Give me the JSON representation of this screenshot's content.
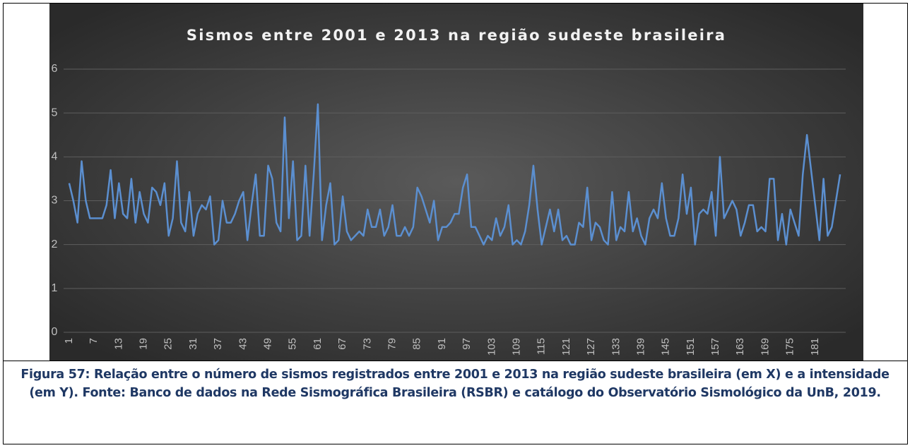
{
  "chart_data": {
    "type": "line",
    "title": "Sismos entre 2001 e 2013 na região sudeste brasileira",
    "categories": [
      "1",
      null,
      null,
      null,
      null,
      null,
      "7",
      null,
      null,
      null,
      null,
      null,
      "13",
      null,
      null,
      null,
      null,
      null,
      "19",
      null,
      null,
      null,
      null,
      null,
      "25",
      null,
      null,
      null,
      null,
      null,
      "31",
      null,
      null,
      null,
      null,
      null,
      "37",
      null,
      null,
      null,
      null,
      null,
      "43",
      null,
      null,
      null,
      null,
      null,
      "49",
      null,
      null,
      null,
      null,
      null,
      "55",
      null,
      null,
      null,
      null,
      null,
      "61",
      null,
      null,
      null,
      null,
      null,
      "67",
      null,
      null,
      null,
      null,
      null,
      "73",
      null,
      null,
      null,
      null,
      null,
      "79",
      null,
      null,
      null,
      null,
      null,
      "85",
      null,
      null,
      null,
      null,
      null,
      "91",
      null,
      null,
      null,
      null,
      null,
      "97",
      null,
      null,
      null,
      null,
      null,
      "103",
      null,
      null,
      null,
      null,
      null,
      "109",
      null,
      null,
      null,
      null,
      null,
      "115",
      null,
      null,
      null,
      null,
      null,
      "121",
      null,
      null,
      null,
      null,
      null,
      "127",
      null,
      null,
      null,
      null,
      null,
      "133",
      null,
      null,
      null,
      null,
      null,
      "139",
      null,
      null,
      null,
      null,
      null,
      "145",
      null,
      null,
      null,
      null,
      null,
      "151",
      null,
      null,
      null,
      null,
      null,
      "157",
      null,
      null,
      null,
      null,
      null,
      "163",
      null,
      null,
      null,
      null,
      null,
      "169",
      null,
      null,
      null,
      null,
      null,
      "175",
      null,
      null,
      null,
      null,
      null,
      "181",
      null,
      null,
      null,
      null,
      null,
      null
    ],
    "series": [
      {
        "color": "#5b8fd0",
        "values": [
          3.4,
          3.0,
          2.5,
          3.9,
          3.0,
          2.6,
          2.6,
          2.6,
          2.6,
          2.9,
          3.7,
          2.6,
          3.4,
          2.7,
          2.6,
          3.5,
          2.5,
          3.2,
          2.7,
          2.5,
          3.3,
          3.2,
          2.9,
          3.4,
          2.2,
          2.6,
          3.9,
          2.5,
          2.3,
          3.2,
          2.2,
          2.7,
          2.9,
          2.8,
          3.1,
          2.0,
          2.1,
          3.0,
          2.5,
          2.5,
          2.7,
          3.0,
          3.2,
          2.1,
          2.9,
          3.6,
          2.2,
          2.2,
          3.8,
          3.5,
          2.5,
          2.3,
          4.9,
          2.6,
          3.9,
          2.1,
          2.2,
          3.8,
          2.2,
          3.6,
          5.2,
          2.1,
          2.9,
          3.4,
          2.0,
          2.1,
          3.1,
          2.3,
          2.1,
          2.2,
          2.3,
          2.2,
          2.8,
          2.4,
          2.4,
          2.8,
          2.2,
          2.4,
          2.9,
          2.2,
          2.2,
          2.4,
          2.2,
          2.4,
          3.3,
          3.1,
          2.8,
          2.5,
          3.0,
          2.1,
          2.4,
          2.4,
          2.5,
          2.7,
          2.7,
          3.3,
          3.6,
          2.4,
          2.4,
          2.2,
          2.0,
          2.2,
          2.1,
          2.6,
          2.2,
          2.4,
          2.9,
          2.0,
          2.1,
          2.0,
          2.3,
          2.9,
          3.8,
          2.8,
          2.0,
          2.4,
          2.8,
          2.3,
          2.8,
          2.1,
          2.2,
          2.0,
          2.0,
          2.5,
          2.4,
          3.3,
          2.1,
          2.5,
          2.4,
          2.1,
          2.0,
          3.2,
          2.1,
          2.4,
          2.3,
          3.2,
          2.3,
          2.6,
          2.2,
          2.0,
          2.6,
          2.8,
          2.6,
          3.4,
          2.6,
          2.2,
          2.2,
          2.6,
          3.6,
          2.7,
          3.3,
          2.0,
          2.7,
          2.8,
          2.7,
          3.2,
          2.2,
          4.0,
          2.6,
          2.8,
          3.0,
          2.8,
          2.2,
          2.5,
          2.9,
          2.9,
          2.3,
          2.4,
          2.3,
          3.5,
          3.5,
          2.1,
          2.7,
          2.0,
          2.8,
          2.5,
          2.2,
          3.6,
          4.5,
          3.7,
          2.9,
          2.1,
          3.5,
          2.2,
          2.4,
          3.0,
          3.6
        ]
      }
    ],
    "ylim": [
      0,
      6
    ],
    "yticks": [
      0,
      1,
      2,
      3,
      4,
      5,
      6
    ],
    "grid": true,
    "caption": "Figura 57: Relação entre o número de sismos registrados entre 2001 e 2013 na região sudeste brasileira (em X) e a intensidade (em Y). Fonte: Banco de dados na Rede Sismográfica Brasileira (RSBR) e catálogo do Observatório Sismológico da UnB, 2019."
  }
}
